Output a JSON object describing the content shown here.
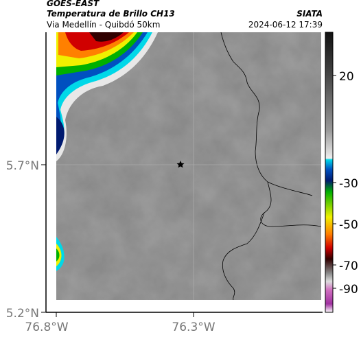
{
  "header": {
    "title": "GOES-EAST",
    "subtitle": "Temperatura de Brillo CH13",
    "route": "Via Medellín - Quibdó 50km",
    "source": "SIATA",
    "timestamp": "2024-06-12 17:39"
  },
  "axes": {
    "latitude_labels": [
      "5.7°N",
      "5.2°N"
    ],
    "longitude_labels": [
      "76.8°W",
      "76.3°W"
    ]
  },
  "colorbar": {
    "tick_labels": [
      "20",
      "-30",
      "-50",
      "-70",
      "-90"
    ]
  }
}
